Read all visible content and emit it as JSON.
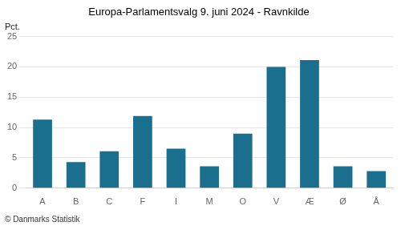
{
  "chart_data": {
    "type": "bar",
    "title": "Europa-Parlamentsvalg 9. juni 2024 - Ravnkilde",
    "categories": [
      "A",
      "B",
      "C",
      "F",
      "I",
      "M",
      "O",
      "V",
      "Æ",
      "Ø",
      "Å"
    ],
    "values": [
      11.3,
      4.3,
      6.1,
      11.9,
      6.5,
      3.6,
      9.0,
      20.0,
      21.1,
      3.6,
      2.8
    ],
    "color": "#1a6e8e",
    "ylabel": "Pct.",
    "footer": "© Danmarks Statistik",
    "ylim": [
      0,
      25
    ],
    "yticks": [
      0,
      5,
      10,
      15,
      20,
      25
    ],
    "grid": true
  }
}
